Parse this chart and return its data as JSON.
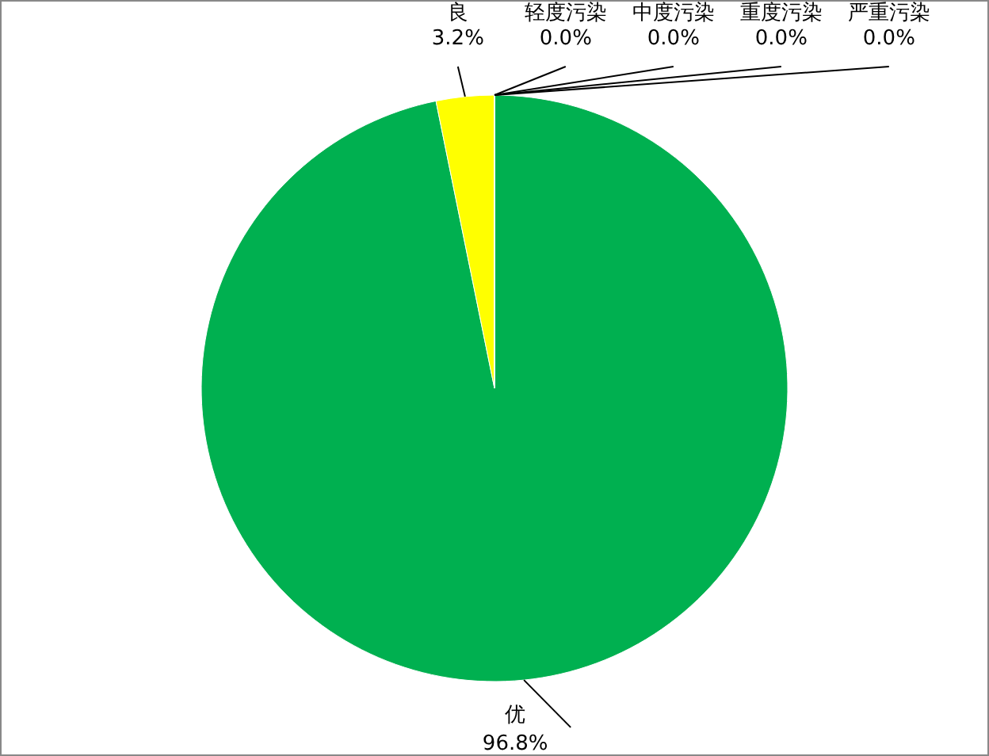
{
  "chart_data": {
    "type": "pie",
    "categories": [
      "优",
      "良",
      "轻度污染",
      "中度污染",
      "重度污染",
      "严重污染"
    ],
    "values": [
      96.8,
      3.2,
      0.0,
      0.0,
      0.0,
      0.0
    ],
    "colors": [
      "#00b050",
      "#ffff00",
      "#ff9900",
      "#ff0000",
      "#990099",
      "#800000"
    ],
    "value_labels": [
      "96.8%",
      "3.2%",
      "0.0%",
      "0.0%",
      "0.0%",
      "0.0%"
    ]
  }
}
